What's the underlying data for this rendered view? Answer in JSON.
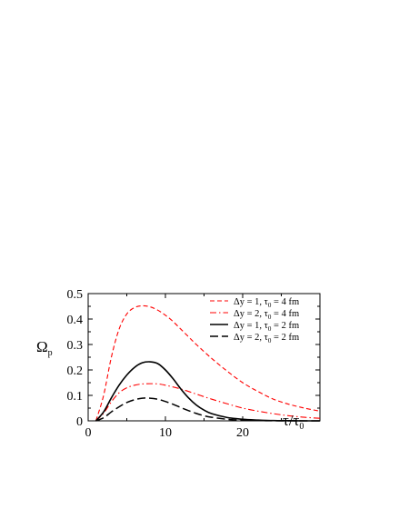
{
  "chart_data": {
    "type": "line",
    "title": "",
    "xlabel": "τ/τ",
    "xlabel_sub": "0",
    "ylabel": "Ω",
    "ylabel_sub": "p",
    "xlim": [
      0,
      30
    ],
    "ylim": [
      0,
      0.5
    ],
    "x_ticks": [
      0,
      10,
      20
    ],
    "x_tick_labels": [
      "0",
      "10",
      "20"
    ],
    "y_ticks": [
      0,
      0.1,
      0.2,
      0.3,
      0.4,
      0.5
    ],
    "y_tick_labels": [
      "0",
      "0.1",
      "0.2",
      "0.3",
      "0.4",
      "0.5"
    ],
    "grid": false,
    "legend_position": "top-right",
    "series": [
      {
        "name": "Δy = 1, τ₀ = 4 fm",
        "label_parts": [
          "Δy = 1, τ",
          "0",
          " = 4 fm"
        ],
        "color": "#ff0000",
        "dash": "dashed",
        "x": [
          1,
          2,
          3,
          4,
          5,
          6,
          7,
          8,
          9,
          10,
          11,
          12,
          13,
          14,
          16,
          18,
          20,
          22,
          24,
          26,
          28,
          30
        ],
        "y": [
          0,
          0.1,
          0.25,
          0.36,
          0.42,
          0.445,
          0.452,
          0.448,
          0.435,
          0.415,
          0.39,
          0.36,
          0.33,
          0.3,
          0.245,
          0.195,
          0.15,
          0.115,
          0.085,
          0.065,
          0.05,
          0.038
        ]
      },
      {
        "name": "Δy = 2, τ₀ = 4 fm",
        "label_parts": [
          "Δy = 2, τ",
          "0",
          " = 4 fm"
        ],
        "color": "#ff0000",
        "dash": "dashdot",
        "x": [
          1,
          2,
          3,
          4,
          5,
          6,
          7,
          8,
          9,
          10,
          12,
          14,
          16,
          18,
          20,
          22,
          24,
          26,
          28,
          30
        ],
        "y": [
          0,
          0.03,
          0.075,
          0.11,
          0.13,
          0.14,
          0.145,
          0.146,
          0.145,
          0.14,
          0.125,
          0.105,
          0.085,
          0.067,
          0.05,
          0.038,
          0.028,
          0.02,
          0.014,
          0.01
        ]
      },
      {
        "name": "Δy = 1, τ₀ = 2 fm",
        "label_parts": [
          "Δy = 1, τ",
          "0",
          " = 2 fm"
        ],
        "color": "#000000",
        "dash": "solid",
        "x": [
          1,
          2,
          3,
          4,
          5,
          6,
          7,
          8,
          9,
          10,
          11,
          12,
          13,
          14,
          15,
          16,
          18,
          20,
          22,
          24,
          26,
          28,
          30
        ],
        "y": [
          0,
          0.035,
          0.09,
          0.14,
          0.18,
          0.21,
          0.228,
          0.232,
          0.225,
          0.2,
          0.165,
          0.125,
          0.09,
          0.062,
          0.042,
          0.028,
          0.013,
          0.006,
          0.003,
          0.001,
          0.0005,
          0,
          0
        ]
      },
      {
        "name": "Δy = 2, τ₀ = 2 fm",
        "label_parts": [
          "Δy = 2, τ",
          "0",
          " = 2 fm"
        ],
        "color": "#000000",
        "dash": "longdash",
        "x": [
          1,
          2,
          3,
          4,
          5,
          6,
          7,
          8,
          9,
          10,
          11,
          12,
          13,
          14,
          15,
          16,
          18,
          20,
          22,
          24,
          26,
          28,
          30
        ],
        "y": [
          0,
          0.012,
          0.035,
          0.055,
          0.072,
          0.083,
          0.089,
          0.089,
          0.085,
          0.076,
          0.065,
          0.052,
          0.04,
          0.029,
          0.02,
          0.014,
          0.006,
          0.0025,
          0.001,
          0.0004,
          0,
          0,
          0
        ]
      }
    ]
  }
}
